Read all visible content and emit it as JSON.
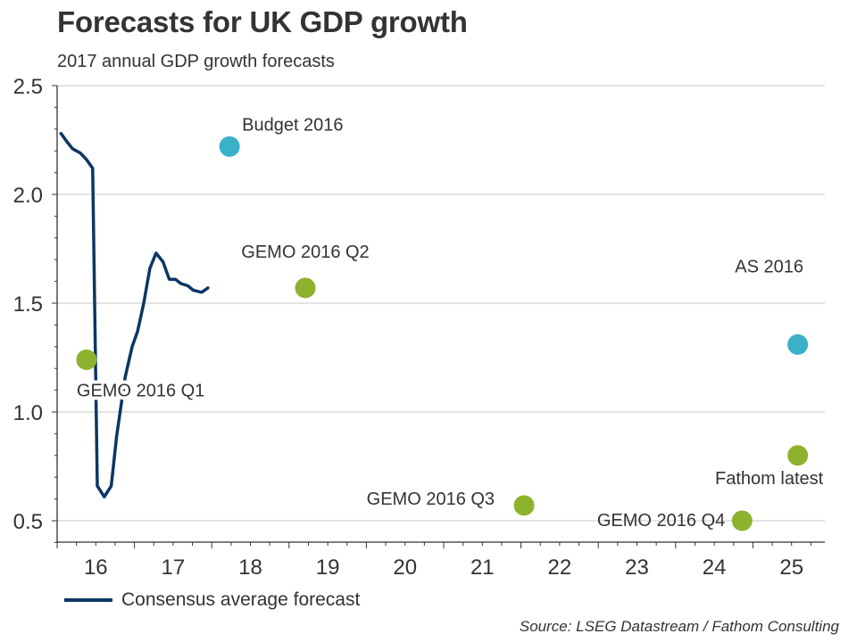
{
  "chart_data": {
    "type": "line",
    "title": "Forecasts for UK GDP growth",
    "subtitle": "2017 annual GDP growth forecasts",
    "xlabel": "",
    "ylabel": "",
    "xlim": [
      16.0,
      25.93
    ],
    "ylim": [
      0.4,
      2.5
    ],
    "x_tick_labels": [
      "16",
      "17",
      "18",
      "19",
      "20",
      "21",
      "22",
      "23",
      "24",
      "25"
    ],
    "x_minor_ticks_per_year": 4,
    "y_ticks": [
      0.5,
      1.0,
      1.5,
      2.0,
      2.5
    ],
    "y_tick_labels": [
      "0.5",
      "1.0",
      "1.5",
      "2.0",
      "2.5"
    ],
    "y_minor_step": 0.1,
    "grid": "horizontal",
    "legend_position": "bottom-left",
    "series": [
      {
        "name": "Consensus average forecast",
        "type": "line",
        "color": "#0b3764",
        "points": [
          [
            16.05,
            2.28
          ],
          [
            16.13,
            2.24
          ],
          [
            16.2,
            2.21
          ],
          [
            16.3,
            2.19
          ],
          [
            16.38,
            2.16
          ],
          [
            16.46,
            2.12
          ],
          [
            16.52,
            0.66
          ],
          [
            16.61,
            0.61
          ],
          [
            16.7,
            0.66
          ],
          [
            16.77,
            0.89
          ],
          [
            16.88,
            1.16
          ],
          [
            16.97,
            1.3
          ],
          [
            17.04,
            1.37
          ],
          [
            17.12,
            1.5
          ],
          [
            17.2,
            1.66
          ],
          [
            17.28,
            1.73
          ],
          [
            17.37,
            1.69
          ],
          [
            17.45,
            1.61
          ],
          [
            17.53,
            1.61
          ],
          [
            17.6,
            1.59
          ],
          [
            17.69,
            1.58
          ],
          [
            17.76,
            1.56
          ],
          [
            17.87,
            1.55
          ],
          [
            17.95,
            1.57
          ]
        ]
      }
    ],
    "points": [
      {
        "label": "GEMO 2016 Q1",
        "x": 16.38,
        "y": 1.24,
        "color": "#8db32e",
        "label_pos": "below-right"
      },
      {
        "label": "Budget 2016",
        "x": 18.23,
        "y": 2.22,
        "color": "#3ab0c9",
        "label_pos": "above-right"
      },
      {
        "label": "GEMO 2016 Q2",
        "x": 19.21,
        "y": 1.57,
        "color": "#8db32e",
        "label_pos": "above"
      },
      {
        "label": "GEMO 2016 Q3",
        "x": 22.04,
        "y": 0.57,
        "color": "#8db32e",
        "label_pos": "left"
      },
      {
        "label": "GEMO 2016 Q4",
        "x": 24.86,
        "y": 0.5,
        "color": "#8db32e",
        "label_pos": "left"
      },
      {
        "label": "AS 2016",
        "x": 25.58,
        "y": 1.31,
        "color": "#3ab0c9",
        "label_pos": "above-far"
      },
      {
        "label": "Fathom latest",
        "x": 25.58,
        "y": 0.8,
        "color": "#8db32e",
        "label_pos": "below"
      }
    ]
  },
  "legend": {
    "label": "Consensus average forecast"
  },
  "source": "Source: LSEG Datastream / Fathom Consulting"
}
